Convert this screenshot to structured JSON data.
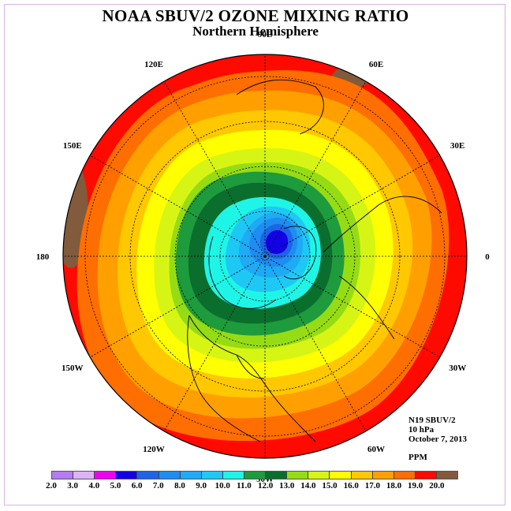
{
  "header": {
    "title": "NOAA SBUV/2 OZONE MIXING RATIO",
    "subtitle": "Northern Hemisphere"
  },
  "map": {
    "projection": "north polar stereographic",
    "longitude_labels": [
      {
        "text": "90E",
        "lon": 90
      },
      {
        "text": "60E",
        "lon": 60
      },
      {
        "text": "30E",
        "lon": 30
      },
      {
        "text": "0",
        "lon": 0
      },
      {
        "text": "30W",
        "lon": -30
      },
      {
        "text": "60W",
        "lon": -60
      },
      {
        "text": "90W",
        "lon": -90
      },
      {
        "text": "120W",
        "lon": -120
      },
      {
        "text": "150W",
        "lon": -150
      },
      {
        "text": "180",
        "lon": 180
      },
      {
        "text": "150E",
        "lon": 150
      },
      {
        "text": "120E",
        "lon": 120
      }
    ],
    "field_description": "ozone mixing ratio contours, minimum (about 5-6 ppm) near the pole, increasing to 18-19 ppm toward the equator"
  },
  "info": {
    "instrument": "N19 SBUV/2",
    "level": "10 hPa",
    "date": "October 7, 2013",
    "units": "PPM"
  },
  "colorbar": {
    "tick_labels": [
      "2.0",
      "3.0",
      "4.0",
      "5.0",
      "6.0",
      "7.0",
      "8.0",
      "9.0",
      "10.0",
      "11.0",
      "12.0",
      "13.0",
      "14.0",
      "15.0",
      "16.0",
      "17.0",
      "18.0",
      "19.0",
      "20.0"
    ],
    "colors": [
      "#b57bf0",
      "#dcb4f5",
      "#f000f0",
      "#1400e6",
      "#1e64e6",
      "#1e8cf0",
      "#1eaaf5",
      "#1ec8f5",
      "#1ef5e6",
      "#1e9b3c",
      "#0a6e2d",
      "#96dc14",
      "#d7f514",
      "#ffff00",
      "#ffc800",
      "#ffa000",
      "#ff6e00",
      "#ff0a00",
      "#825a3c"
    ]
  }
}
